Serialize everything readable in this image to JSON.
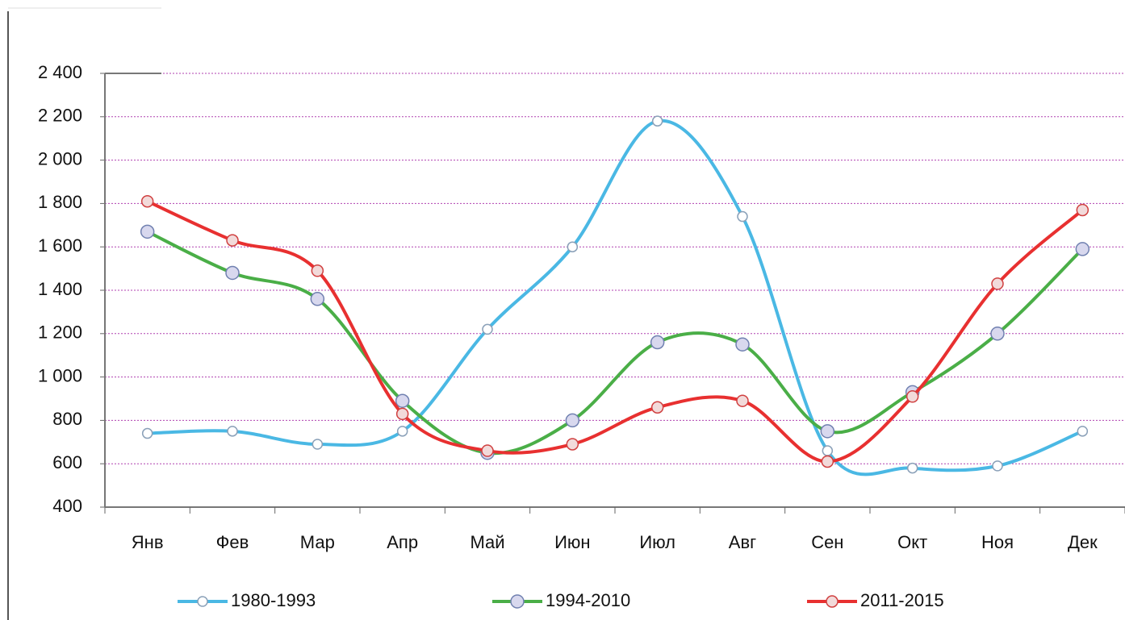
{
  "chart_data": {
    "type": "line",
    "categories": [
      "Янв",
      "Фев",
      "Мар",
      "Апр",
      "Май",
      "Июн",
      "Июл",
      "Авг",
      "Сен",
      "Окт",
      "Ноя",
      "Дек"
    ],
    "series": [
      {
        "name": "1980-1993",
        "color": "#4ab8e4",
        "values": [
          740,
          750,
          690,
          750,
          1220,
          1600,
          2180,
          1740,
          660,
          580,
          590,
          750
        ]
      },
      {
        "name": "1994-2010",
        "color": "#4aae47",
        "values": [
          1670,
          1480,
          1360,
          890,
          650,
          800,
          1160,
          1150,
          750,
          930,
          1200,
          1590
        ]
      },
      {
        "name": "2011-2015",
        "color": "#e83030",
        "values": [
          1810,
          1630,
          1490,
          830,
          660,
          690,
          860,
          890,
          610,
          910,
          1430,
          1770
        ]
      }
    ],
    "ylim": [
      400,
      2400
    ],
    "yticks": [
      {
        "value": 400,
        "label": "400"
      },
      {
        "value": 600,
        "label": "600"
      },
      {
        "value": 800,
        "label": "800"
      },
      {
        "value": 1000,
        "label": "1 000"
      },
      {
        "value": 1200,
        "label": "1 200"
      },
      {
        "value": 1400,
        "label": "1 400"
      },
      {
        "value": 1600,
        "label": "1 600"
      },
      {
        "value": 1800,
        "label": "1 800"
      },
      {
        "value": 2000,
        "label": "2 000"
      },
      {
        "value": 2200,
        "label": "2 200"
      },
      {
        "value": 2400,
        "label": "2 400"
      }
    ],
    "grid": true,
    "legend": "bottom"
  }
}
